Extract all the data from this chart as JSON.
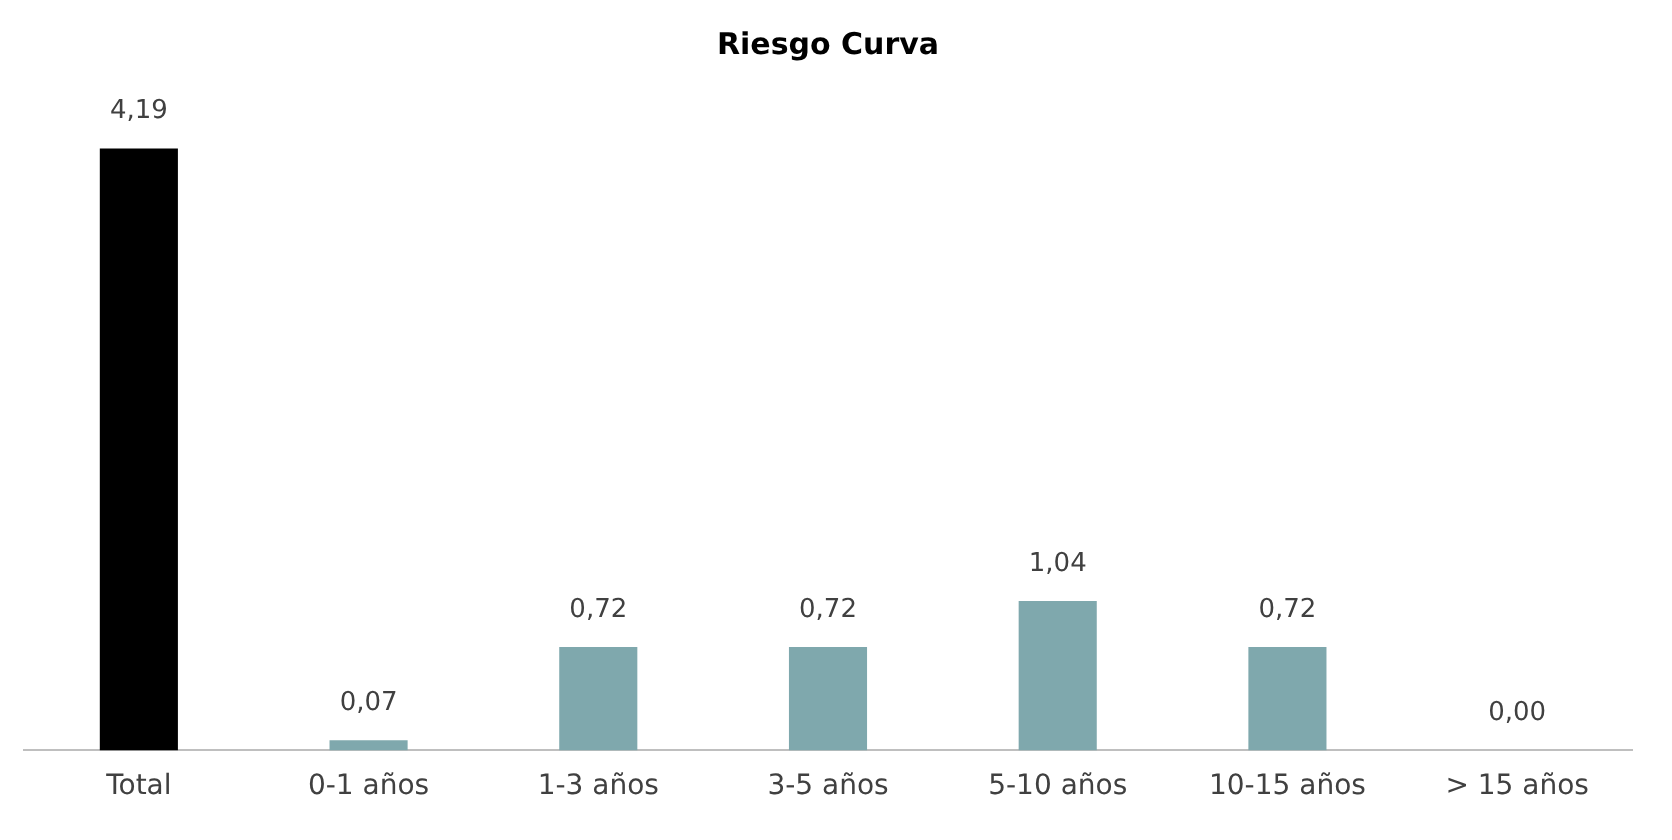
{
  "chart_data": {
    "type": "bar",
    "title": "Riesgo Curva",
    "categories": [
      "Total",
      "0-1 años",
      "1-3 años",
      "3-5 años",
      "5-10 años",
      "10-15 años",
      "> 15 años"
    ],
    "values": [
      4.19,
      0.07,
      0.72,
      0.72,
      1.04,
      0.72,
      0.0
    ],
    "colors": [
      "#000000",
      "#7fa8ad",
      "#7fa8ad",
      "#7fa8ad",
      "#7fa8ad",
      "#7fa8ad",
      "#7fa8ad"
    ],
    "value_labels": [
      "4,19",
      "0,07",
      "0,72",
      "0,72",
      "1,04",
      "0,72",
      "0,00"
    ],
    "grid": false,
    "legend": false
  }
}
